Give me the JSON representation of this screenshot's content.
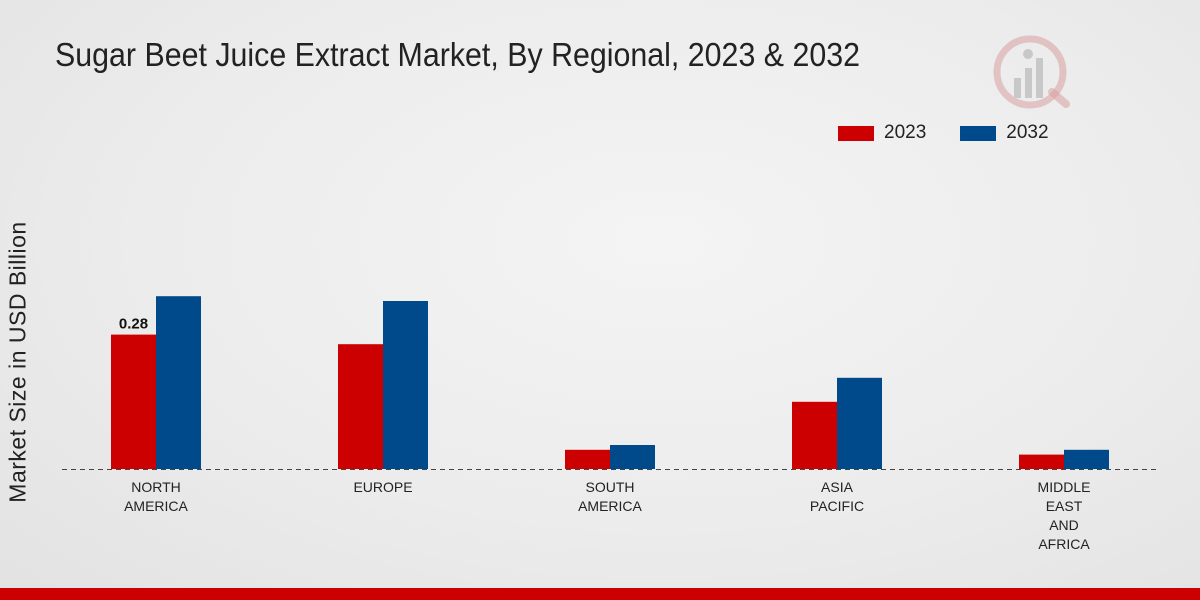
{
  "chart_data": {
    "type": "bar",
    "title": "Sugar Beet Juice Extract Market, By Regional, 2023 & 2032",
    "xlabel": "",
    "ylabel": "Market Size in USD Billion",
    "categories": [
      [
        "NORTH",
        "AMERICA"
      ],
      [
        "EUROPE"
      ],
      [
        "SOUTH",
        "AMERICA"
      ],
      [
        "ASIA",
        "PACIFIC"
      ],
      [
        "MIDDLE",
        "EAST",
        "AND",
        "AFRICA"
      ]
    ],
    "series": [
      {
        "name": "2023",
        "color": "#cc0000",
        "values": [
          0.28,
          0.26,
          0.04,
          0.14,
          0.03
        ]
      },
      {
        "name": "2032",
        "color": "#004a8c",
        "values": [
          0.36,
          0.35,
          0.05,
          0.19,
          0.04
        ]
      }
    ],
    "data_labels": [
      {
        "series": 0,
        "index": 0,
        "text": "0.28"
      }
    ],
    "ylim": [
      0,
      0.6
    ],
    "grid": false,
    "legend": "top-right"
  },
  "legend": {
    "series0": "2023",
    "series1": "2032",
    "color0": "#cc0000",
    "color1": "#004a8c"
  },
  "accent_color": "#cc0000"
}
